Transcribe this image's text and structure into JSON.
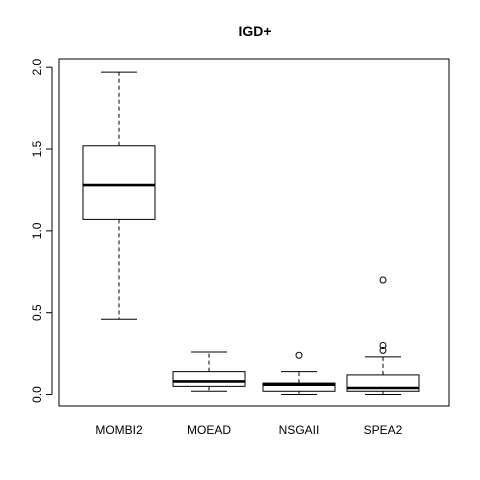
{
  "chart_data": {
    "type": "boxplot",
    "title": "IGD+",
    "xlabel": "",
    "ylabel": "",
    "ylim": [
      -0.07,
      2.05
    ],
    "yticks": [
      0.0,
      0.5,
      1.0,
      1.5,
      2.0
    ],
    "ytick_labels": [
      "0.0",
      "0.5",
      "1.0",
      "1.5",
      "2.0"
    ],
    "categories": [
      "MOMBI2",
      "MOEAD",
      "NSGAII",
      "SPEA2"
    ],
    "boxes": [
      {
        "category": "MOMBI2",
        "whisker_low": 0.46,
        "q1": 1.07,
        "median": 1.28,
        "q3": 1.52,
        "whisker_high": 1.97,
        "outliers": []
      },
      {
        "category": "MOEAD",
        "whisker_low": 0.02,
        "q1": 0.05,
        "median": 0.08,
        "q3": 0.14,
        "whisker_high": 0.26,
        "outliers": []
      },
      {
        "category": "NSGAII",
        "whisker_low": 0.0,
        "q1": 0.02,
        "median": 0.06,
        "q3": 0.07,
        "whisker_high": 0.14,
        "outliers": [
          0.24
        ]
      },
      {
        "category": "SPEA2",
        "whisker_low": 0.0,
        "q1": 0.02,
        "median": 0.04,
        "q3": 0.12,
        "whisker_high": 0.23,
        "outliers": [
          0.27,
          0.3,
          0.7
        ]
      }
    ]
  }
}
